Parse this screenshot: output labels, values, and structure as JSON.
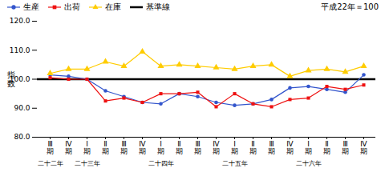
{
  "chart_data": {
    "type": "line",
    "title": "平成22年＝100",
    "ylabel": "指数",
    "categories": [
      "Ⅲ期",
      "Ⅳ期",
      "Ⅰ期",
      "Ⅱ期",
      "Ⅲ期",
      "Ⅳ期",
      "Ⅰ期",
      "Ⅱ期",
      "Ⅲ期",
      "Ⅳ期",
      "Ⅰ期",
      "Ⅱ期",
      "Ⅲ期",
      "Ⅳ期",
      "Ⅰ期",
      "Ⅱ期",
      "Ⅲ期",
      "Ⅳ期"
    ],
    "series": [
      {
        "name": "生産",
        "color": "#3355CC",
        "marker": "circle",
        "values": [
          101.5,
          101.0,
          100.0,
          96.0,
          94.0,
          92.0,
          91.5,
          95.0,
          94.0,
          92.0,
          91.0,
          91.5,
          93.0,
          97.0,
          97.5,
          96.5,
          95.5,
          101.5
        ]
      },
      {
        "name": "出荷",
        "color": "#EE1111",
        "marker": "square",
        "values": [
          100.5,
          100.0,
          100.0,
          92.5,
          93.5,
          92.0,
          95.0,
          95.0,
          95.5,
          90.5,
          95.0,
          91.5,
          90.5,
          93.0,
          93.5,
          97.5,
          96.5,
          98.0
        ]
      },
      {
        "name": "在庫",
        "color": "#FFCC00",
        "marker": "triangle",
        "values": [
          102.0,
          103.5,
          103.5,
          106.0,
          104.5,
          109.5,
          104.5,
          105.0,
          104.5,
          104.0,
          103.5,
          104.5,
          105.0,
          101.0,
          103.0,
          103.5,
          102.5,
          104.5
        ]
      }
    ],
    "baseline": {
      "name": "基準線",
      "value": 100.0,
      "color": "#000000"
    },
    "annotations": [
      {
        "x": 0,
        "text": "二十二年"
      },
      {
        "x": 2,
        "text": "二十三年"
      },
      {
        "x": 6,
        "text": "二十四年"
      },
      {
        "x": 10,
        "text": "二十五年"
      },
      {
        "x": 14,
        "text": "二十六年"
      }
    ],
    "ylim": [
      80.0,
      120.0
    ],
    "yticks": [
      {
        "value": 80.0,
        "label": "80.0"
      },
      {
        "value": 90.0,
        "label": "90.0"
      },
      {
        "value": 100.0,
        "label": "100.0"
      },
      {
        "value": 110.0,
        "label": "110.0"
      },
      {
        "value": 120.0,
        "label": "120.0"
      }
    ],
    "grid": false,
    "legend": "top"
  }
}
